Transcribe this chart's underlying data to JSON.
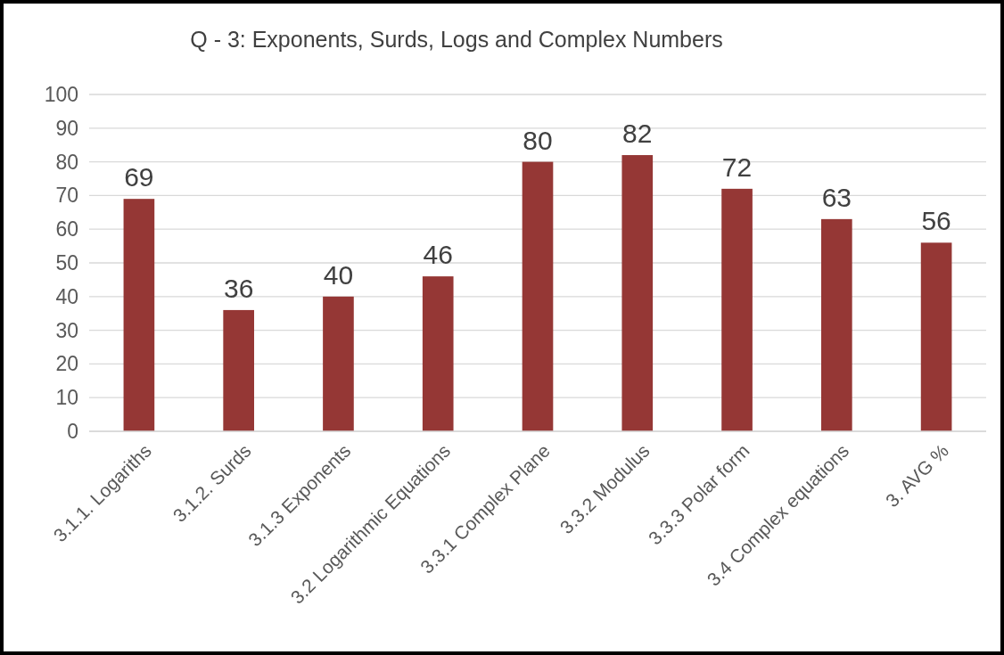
{
  "chart_data": {
    "type": "bar",
    "title": "Q - 3: Exponents, Surds, Logs and Complex Numbers",
    "categories": [
      "3.1.1. Logariths",
      "3.1.2. Surds",
      "3.1.3 Exponents",
      "3.2 Logarithmic Equations",
      "3.3.1 Complex Plane",
      "3.3.2 Modulus",
      "3.3.3 Polar form",
      "3.4 Complex equations",
      "3. AVG %"
    ],
    "values": [
      69,
      36,
      40,
      46,
      80,
      82,
      72,
      63,
      56
    ],
    "color": "#953735",
    "ylim": [
      0,
      100
    ],
    "yticks": [
      0,
      10,
      20,
      30,
      40,
      50,
      60,
      70,
      80,
      90,
      100
    ],
    "grid": "y",
    "data_labels": true
  }
}
